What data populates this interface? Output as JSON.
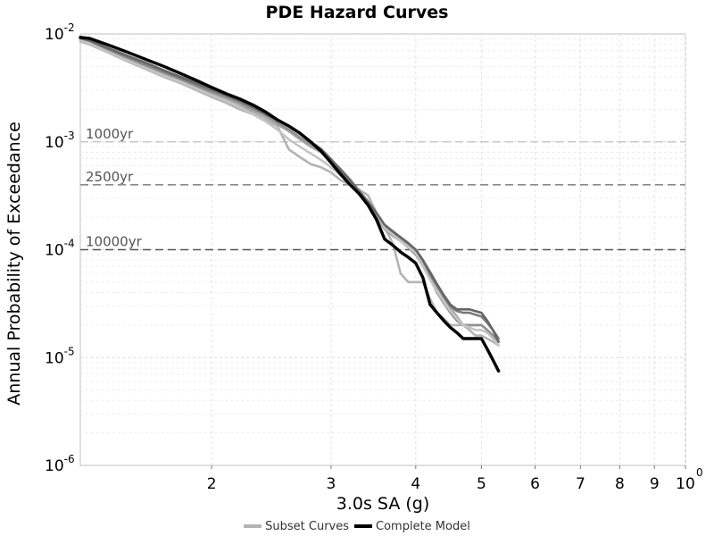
{
  "chart_data": {
    "type": "line",
    "title": "PDE Hazard Curves",
    "xlabel": "3.0s SA (g)",
    "ylabel": "Annual Probability of Exceedance",
    "x_scale": "log",
    "y_scale": "log",
    "xlim": [
      1.28,
      10
    ],
    "ylim": [
      1e-06,
      0.01
    ],
    "grid": true,
    "x_ticks": [
      {
        "value": 2,
        "label": "2"
      },
      {
        "value": 3,
        "label": "3"
      },
      {
        "value": 4,
        "label": "4"
      },
      {
        "value": 5,
        "label": "5"
      },
      {
        "value": 6,
        "label": "6"
      },
      {
        "value": 7,
        "label": "7"
      },
      {
        "value": 8,
        "label": "8"
      },
      {
        "value": 9,
        "label": "9"
      },
      {
        "value": 10,
        "label": "10",
        "exp": "0"
      }
    ],
    "y_ticks": [
      {
        "value": 0.01,
        "base": "10",
        "exp": "-2"
      },
      {
        "value": 0.001,
        "base": "10",
        "exp": "-3"
      },
      {
        "value": 0.0001,
        "base": "10",
        "exp": "-4"
      },
      {
        "value": 1e-05,
        "base": "10",
        "exp": "-5"
      },
      {
        "value": 1e-06,
        "base": "10",
        "exp": "-6"
      }
    ],
    "reference_lines": [
      {
        "label": "1000yr",
        "y": 0.001,
        "color": "#c8c8c8"
      },
      {
        "label": "2500yr",
        "y": 0.0004,
        "color": "#8a8a8a"
      },
      {
        "label": "10000yr",
        "y": 0.0001,
        "color": "#555555"
      }
    ],
    "x": [
      1.28,
      1.32,
      1.4,
      1.5,
      1.6,
      1.7,
      1.8,
      1.9,
      2.0,
      2.1,
      2.2,
      2.3,
      2.4,
      2.5,
      2.6,
      2.7,
      2.8,
      2.9,
      3.0,
      3.1,
      3.2,
      3.3,
      3.4,
      3.5,
      3.6,
      3.7,
      3.8,
      3.9,
      4.0,
      4.1,
      4.2,
      4.3,
      4.4,
      4.5,
      4.6,
      4.7,
      4.8,
      4.9,
      5.0,
      5.1,
      5.2,
      5.3
    ],
    "series": [
      {
        "kind": "subset",
        "color": "#b4b4b4",
        "values": [
          0.0085,
          0.008,
          0.0068,
          0.0056,
          0.0047,
          0.004,
          0.0035,
          0.003,
          0.0026,
          0.0023,
          0.002,
          0.0018,
          0.0016,
          0.0014,
          0.00085,
          0.00072,
          0.00062,
          0.00058,
          0.00052,
          0.00044,
          0.0004,
          0.00036,
          0.00032,
          0.00022,
          0.00016,
          0.000115,
          6e-05,
          5e-05,
          5e-05,
          5e-05,
          3.5e-05,
          2.6e-05,
          2.3e-05,
          2e-05,
          2e-05,
          2e-05,
          1.8e-05,
          1.6e-05,
          1.6e-05,
          1.5e-05,
          1.4e-05,
          1.3e-05
        ]
      },
      {
        "kind": "subset",
        "color": "#a8a8a8",
        "values": [
          0.0088,
          0.0083,
          0.007,
          0.0058,
          0.0049,
          0.0042,
          0.0037,
          0.0032,
          0.0028,
          0.0025,
          0.0022,
          0.0019,
          0.0017,
          0.00145,
          0.00125,
          0.00105,
          0.0009,
          0.0008,
          0.00068,
          0.00056,
          0.00045,
          0.00035,
          0.00028,
          0.00022,
          0.000162,
          0.000142,
          0.000125,
          0.00011,
          9.5e-05,
          7.5e-05,
          6e-05,
          4.5e-05,
          3.6e-05,
          2.9e-05,
          2.4e-05,
          2e-05,
          2e-05,
          2e-05,
          2e-05,
          1.8e-05,
          1.6e-05,
          1.5e-05
        ]
      },
      {
        "kind": "subset",
        "color": "#909090",
        "values": [
          0.0089,
          0.0084,
          0.0072,
          0.006,
          0.0051,
          0.0044,
          0.0038,
          0.0033,
          0.0029,
          0.0026,
          0.0023,
          0.002,
          0.0018,
          0.0015,
          0.0013,
          0.0011,
          0.00095,
          0.00082,
          0.00066,
          0.00052,
          0.00042,
          0.00033,
          0.00026,
          0.0002,
          0.000155,
          0.000135,
          0.00012,
          0.000105,
          9e-05,
          7e-05,
          5.5e-05,
          4e-05,
          3.2e-05,
          2.6e-05,
          2.2e-05,
          2e-05,
          2e-05,
          2e-05,
          2e-05,
          1.8e-05,
          1.6e-05,
          1.4e-05
        ]
      },
      {
        "kind": "subset",
        "color": "#7a7a7a",
        "values": [
          0.009,
          0.0086,
          0.0074,
          0.0062,
          0.0053,
          0.0045,
          0.0039,
          0.0034,
          0.003,
          0.0027,
          0.0024,
          0.0021,
          0.0019,
          0.0016,
          0.0014,
          0.00118,
          0.001,
          0.00085,
          0.00068,
          0.00054,
          0.00043,
          0.00034,
          0.00027,
          0.00021,
          0.000165,
          0.000145,
          0.00013,
          0.000115,
          0.0001,
          8e-05,
          6e-05,
          4.7e-05,
          3.7e-05,
          3e-05,
          2.7e-05,
          2.6e-05,
          2.6e-05,
          2.5e-05,
          2.4e-05,
          2.1e-05,
          1.8e-05,
          1.5e-05
        ]
      },
      {
        "kind": "subset",
        "color": "#c4c4c4",
        "values": [
          0.0087,
          0.0082,
          0.0069,
          0.0057,
          0.0048,
          0.0041,
          0.0036,
          0.0031,
          0.0027,
          0.0024,
          0.0021,
          0.0018,
          0.00155,
          0.0013,
          0.00105,
          0.0009,
          0.00078,
          0.00068,
          0.00058,
          0.00049,
          0.00042,
          0.00035,
          0.00028,
          0.00022,
          0.000158,
          0.000138,
          0.00012,
          0.000106,
          9.3e-05,
          7e-05,
          5.3e-05,
          4.1e-05,
          3.3e-05,
          2.7e-05,
          2.3e-05,
          2e-05,
          1.9e-05,
          1.8e-05,
          1.8e-05,
          1.7e-05,
          1.5e-05,
          1.3e-05
        ]
      },
      {
        "kind": "subset",
        "color": "#666666",
        "values": [
          0.0091,
          0.0087,
          0.0075,
          0.0063,
          0.0054,
          0.0046,
          0.004,
          0.0035,
          0.0031,
          0.0027,
          0.0024,
          0.0021,
          0.0018,
          0.0016,
          0.0014,
          0.0012,
          0.001,
          0.00086,
          0.00069,
          0.00055,
          0.00044,
          0.00035,
          0.00028,
          0.00022,
          0.00017,
          0.000148,
          0.00013,
          0.000115,
          0.0001,
          8e-05,
          6.2e-05,
          4.8e-05,
          3.8e-05,
          3.1e-05,
          2.8e-05,
          2.8e-05,
          2.8e-05,
          2.7e-05,
          2.6e-05,
          2.2e-05,
          1.8e-05,
          1.4e-05
        ]
      },
      {
        "kind": "complete",
        "color": "#000000",
        "values": [
          0.0093,
          0.0091,
          0.008,
          0.0068,
          0.0058,
          0.005,
          0.0043,
          0.0037,
          0.0032,
          0.0028,
          0.0025,
          0.0022,
          0.0019,
          0.0016,
          0.0014,
          0.0012,
          0.001,
          0.00082,
          0.00064,
          0.0005,
          0.0004,
          0.00033,
          0.00026,
          0.00019,
          0.000125,
          0.00011,
          9.5e-05,
          8.5e-05,
          7.5e-05,
          5.5e-05,
          3.1e-05,
          2.6e-05,
          2.2e-05,
          1.9e-05,
          1.7e-05,
          1.5e-05,
          1.5e-05,
          1.5e-05,
          1.5e-05,
          1.2e-05,
          9.5e-06,
          7.5e-06
        ]
      }
    ],
    "legend": [
      {
        "label": "Subset Curves",
        "color": "#b4b4b4"
      },
      {
        "label": "Complete Model",
        "color": "#000000"
      }
    ]
  }
}
